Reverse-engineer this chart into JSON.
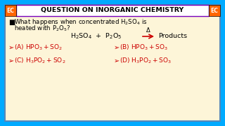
{
  "bg_color": "#fdf5d8",
  "outer_bg": "#00aaff",
  "title_text": "QUESTION ON INORGANIC CHEMISTRY",
  "title_box_color": "#ffffff",
  "title_border_color": "#7700bb",
  "ec_box_color": "#ff6600",
  "ec_text": "EC",
  "opt_color": "#cc0000",
  "arrow_color": "#cc0000",
  "text_color": "#000000",
  "reaction_color": "#000000"
}
